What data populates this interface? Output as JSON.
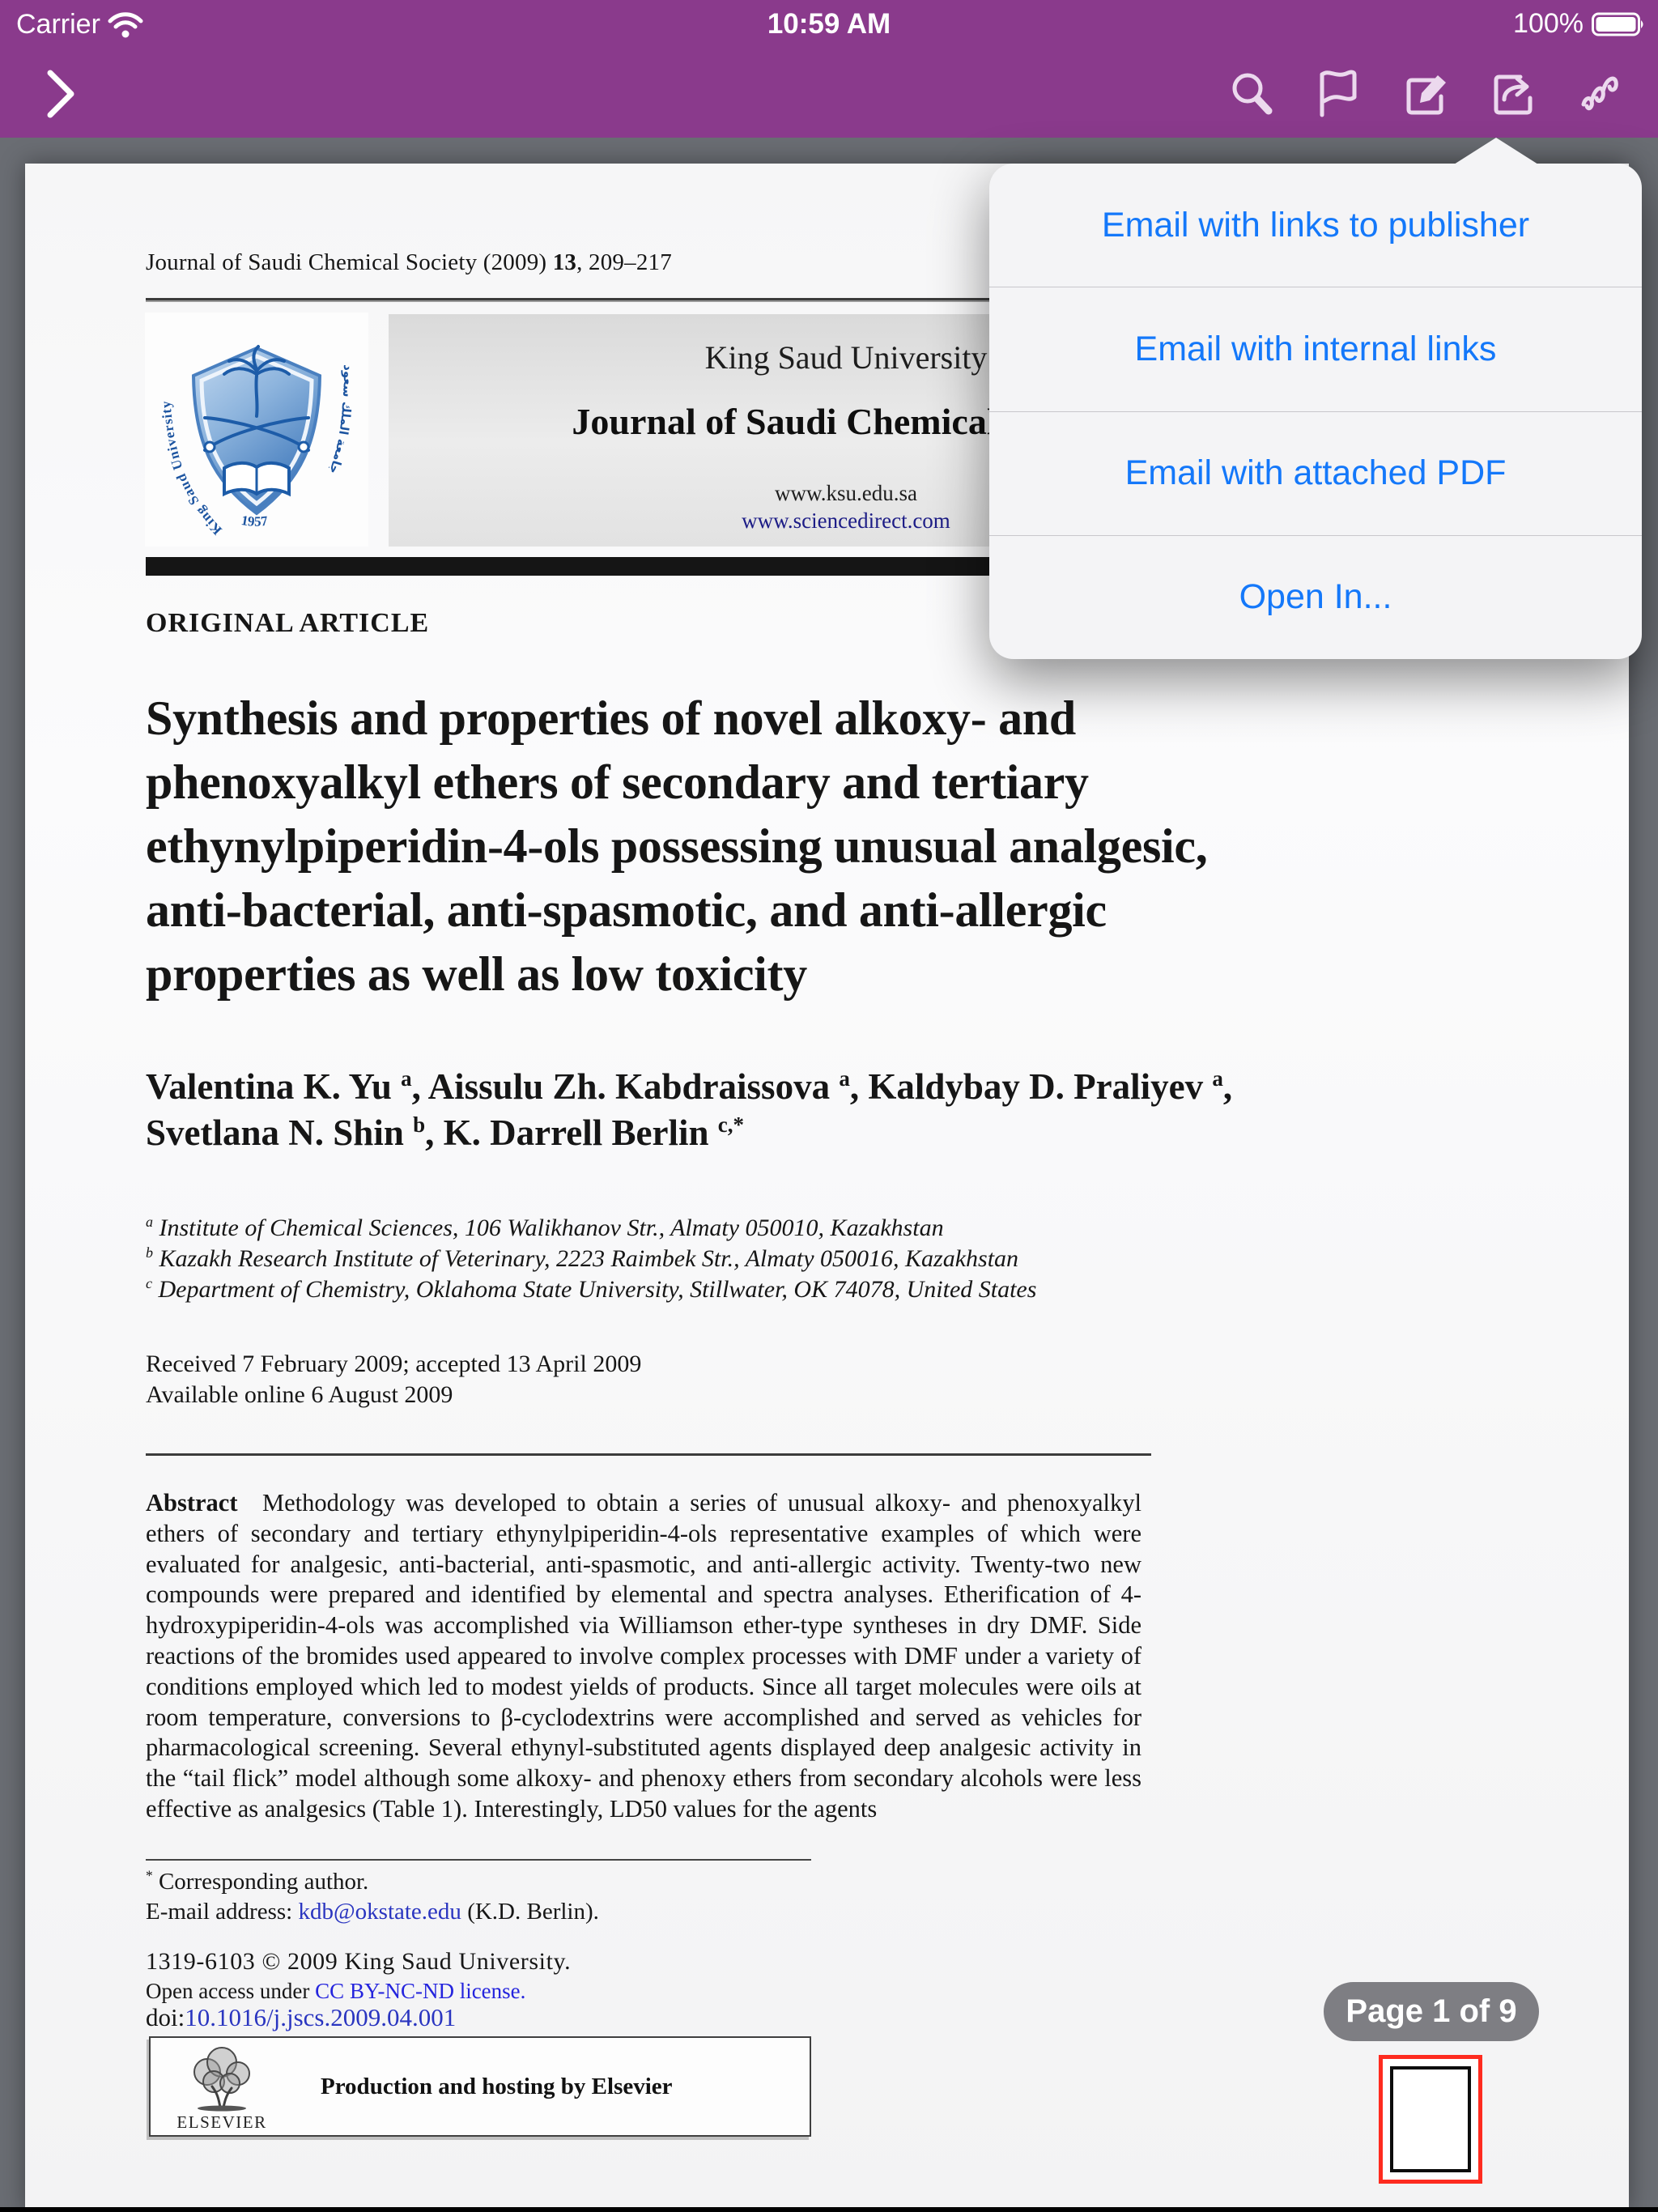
{
  "status_bar": {
    "carrier": "Carrier",
    "time": "10:59 AM",
    "battery": "100%"
  },
  "toolbar": {
    "icons": [
      "sidebar-toggle",
      "search",
      "bookmark-flag",
      "annotate-compose",
      "share-export",
      "scribble"
    ]
  },
  "popover": {
    "items": [
      "Email with links to publisher",
      "Email with internal links",
      "Email with attached PDF",
      "Open In..."
    ]
  },
  "document": {
    "citation_segments": [
      {
        "text": "Journal of Saudi Chemical Society (2009) ",
        "style": "plain"
      },
      {
        "text": "13",
        "style": "bold"
      },
      {
        "text": ", 209–217",
        "style": "plain"
      }
    ],
    "masthead": {
      "university": "King Saud University",
      "journal": "Journal of Saudi Chemical Society",
      "site1": "www.ksu.edu.sa",
      "site2": "www.sciencedirect.com"
    },
    "logo": {
      "ribbon_text": "King Saud University",
      "arabic_text": "جامعة الملك سعود",
      "year": "1957"
    },
    "section_label": "ORIGINAL ARTICLE",
    "title_lines": [
      "Synthesis and properties of novel alkoxy- and",
      "phenoxyalkyl ethers of secondary and tertiary",
      "ethynylpiperidin-4-ols possessing unusual analgesic,",
      "anti-bacterial, anti-spasmotic, and anti-allergic",
      "properties as well as low toxicity"
    ],
    "authors_segments": [
      {
        "text": "Valentina K. Yu ",
        "style": "plain"
      },
      {
        "text": "a",
        "style": "sup"
      },
      {
        "text": ", Aissulu Zh. Kabdraissova ",
        "style": "plain"
      },
      {
        "text": "a",
        "style": "sup"
      },
      {
        "text": ", Kaldybay D. Praliyev ",
        "style": "plain"
      },
      {
        "text": "a",
        "style": "sup"
      },
      {
        "text": ",",
        "style": "plain"
      },
      {
        "br": true
      },
      {
        "text": "Svetlana N. Shin ",
        "style": "plain"
      },
      {
        "text": "b",
        "style": "sup"
      },
      {
        "text": ", K. Darrell Berlin ",
        "style": "plain"
      },
      {
        "text": "c,*",
        "style": "sup"
      }
    ],
    "affiliations_segments": [
      {
        "text": "a",
        "style": "sup"
      },
      {
        "text": " Institute of Chemical Sciences, 106 Walikhanov Str., Almaty 050010, Kazakhstan",
        "style": "plain"
      },
      {
        "br": true
      },
      {
        "text": "b",
        "style": "sup"
      },
      {
        "text": " Kazakh Research Institute of Veterinary, 2223 Raimbek Str., Almaty 050016, Kazakhstan",
        "style": "plain"
      },
      {
        "br": true
      },
      {
        "text": "c",
        "style": "sup"
      },
      {
        "text": " Department of Chemistry, Oklahoma State University, Stillwater, OK 74078, United States",
        "style": "plain"
      }
    ],
    "dates_lines": [
      "Received 7 February 2009; accepted 13 April 2009",
      "Available online 6 August 2009"
    ],
    "abstract_segments": [
      {
        "text": "Abstract",
        "style": "bold"
      },
      {
        "text": " Methodology was developed to obtain a series of unusual alkoxy- and phenoxyalkyl ethers of secondary and tertiary ethynylpiperidin-4-ols representative examples of which were evaluated for analgesic, anti-bacterial, anti-spasmotic, and anti-allergic activity. Twenty-two new compounds were prepared and identified by elemental and spectra analyses. Etherification of 4-hydroxypiperidin-4-ols was accomplished via Williamson ether-type syntheses in dry DMF. Side reactions of the bromides used appeared to involve complex processes with DMF under a variety of conditions employed which led to modest yields of products. Since all target molecules were oils at room temperature, conversions to β-cyclodextrins were accomplished and served as vehicles for pharmacological screening. Several ethynyl-substituted agents displayed deep analgesic activity in the “tail flick” model although some alkoxy- and phenoxy ethers from secondary alcohols were less effective as analgesics (Table 1). Interestingly, LD50 values for the agents",
        "style": "plain"
      }
    ],
    "footnote_segments": [
      {
        "text": "*",
        "style": "sup"
      },
      {
        "text": " Corresponding author.",
        "style": "plain"
      },
      {
        "br": true
      },
      {
        "text": "E-mail address: ",
        "style": "plain"
      },
      {
        "text": "kdb@okstate.edu",
        "style": "link"
      },
      {
        "text": " (K.D. Berlin).",
        "style": "plain"
      }
    ],
    "issn_line": "1319-6103 © 2009 King Saud University.",
    "license_segments": [
      {
        "text": "Open access under ",
        "style": "plain"
      },
      {
        "text": "CC BY-NC-ND license.",
        "style": "linkbright"
      }
    ],
    "doi_segments": [
      {
        "text": "doi:",
        "style": "plain"
      },
      {
        "text": "10.1016/j.jscs.2009.04.001",
        "style": "link"
      }
    ],
    "elsevier": {
      "caption": "ELSEVIER",
      "tagline": "Production and hosting by Elsevier"
    }
  },
  "page_indicator": {
    "label": "Page 1 of 9"
  },
  "colors": {
    "toolbar_purple": "#8a3a8c",
    "background_gray": "#6a6d73",
    "menu_blue": "#1478fa",
    "doc_link_blue": "#2a35c0",
    "license_link_blue": "#2424dd",
    "thumbnail_border_red": "#fe2b1f"
  }
}
